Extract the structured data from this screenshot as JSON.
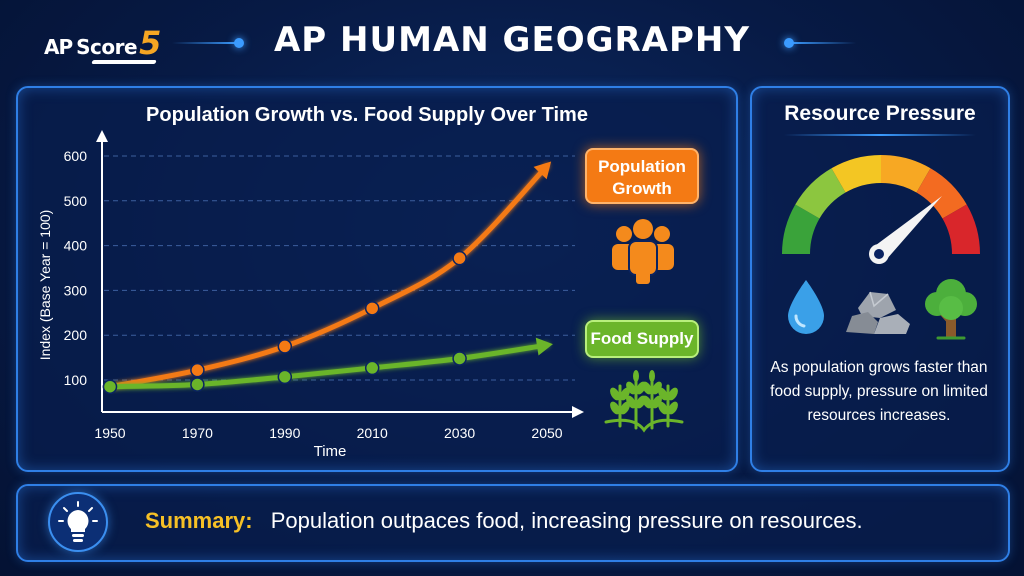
{
  "header": {
    "logo_ap": "AP",
    "logo_score": "Score",
    "logo_five": "5",
    "title": "AP HUMAN GEOGRAPHY"
  },
  "chart_data": {
    "type": "line",
    "title": "Population Growth vs. Food Supply Over Time",
    "xlabel": "Time",
    "ylabel": "Index (Base Year = 100)",
    "x": [
      1950,
      1970,
      1990,
      2010,
      2030,
      2050
    ],
    "xticks": [
      "1950",
      "1970",
      "1990",
      "2010",
      "2030",
      "2050"
    ],
    "yticks": [
      "100",
      "200",
      "300",
      "400",
      "500",
      "600"
    ],
    "ylim": [
      60,
      620
    ],
    "grid": true,
    "series": [
      {
        "name": "Population Growth",
        "color": "#f47a14",
        "x": [
          1950,
          1970,
          1990,
          2010,
          2030
        ],
        "values": [
          85,
          122,
          175,
          260,
          372
        ],
        "arrow_end": [
          2050,
          578
        ]
      },
      {
        "name": "Food Supply",
        "color": "#6bb52a",
        "x": [
          1950,
          1970,
          1990,
          2010,
          2030
        ],
        "values": [
          85,
          90,
          107,
          127,
          148
        ],
        "arrow_end": [
          2050,
          178
        ]
      }
    ],
    "legend_placement": "right"
  },
  "legend": {
    "population_label": "Population Growth",
    "food_label": "Food Supply"
  },
  "icons": [
    "people-group-icon",
    "wheat-icon",
    "gauge-icon",
    "water-drop-icon",
    "rocks-icon",
    "tree-icon",
    "lightbulb-icon"
  ],
  "resource": {
    "title": "Resource Pressure",
    "description": "As population grows faster than food supply, pressure on limited resources increases."
  },
  "summary": {
    "label": "Summary:",
    "text": "Population outpaces food, increasing pressure on resources."
  },
  "colors": {
    "accent": "#3b9bff",
    "population": "#f47a14",
    "food": "#6bb52a",
    "summary_label": "#f6c026"
  }
}
